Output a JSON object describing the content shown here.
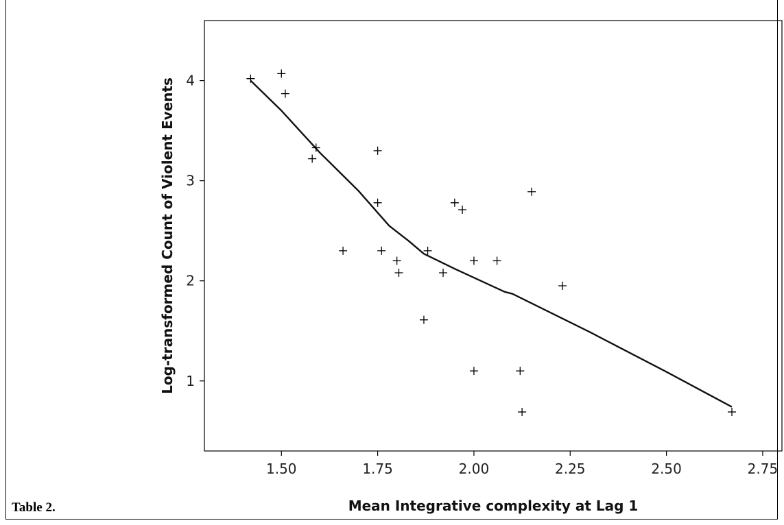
{
  "caption": "Table 2.",
  "chart_data": {
    "type": "scatter",
    "title": "",
    "xlabel": "Mean Integrative complexity at Lag 1",
    "ylabel": "Log-transformed Count of Violent Events",
    "xlim": [
      1.3,
      2.8
    ],
    "ylim": [
      0.3,
      4.6
    ],
    "x_ticks": [
      1.5,
      1.75,
      2.0,
      2.25,
      2.5,
      2.75
    ],
    "x_tick_labels": [
      "1.50",
      "1.75",
      "2.00",
      "2.25",
      "2.50",
      "2.75"
    ],
    "y_ticks": [
      1,
      2,
      3,
      4
    ],
    "y_tick_labels": [
      "1",
      "2",
      "3",
      "4"
    ],
    "grid": false,
    "marker": "plus",
    "points": [
      [
        1.42,
        4.02
      ],
      [
        1.5,
        4.07
      ],
      [
        1.51,
        3.87
      ],
      [
        1.58,
        3.22
      ],
      [
        1.59,
        3.33
      ],
      [
        1.66,
        2.3
      ],
      [
        1.75,
        3.3
      ],
      [
        1.75,
        2.78
      ],
      [
        1.76,
        2.3
      ],
      [
        1.8,
        2.2
      ],
      [
        1.805,
        2.08
      ],
      [
        1.87,
        1.61
      ],
      [
        1.88,
        2.3
      ],
      [
        1.92,
        2.08
      ],
      [
        1.95,
        2.78
      ],
      [
        1.97,
        2.71
      ],
      [
        2.0,
        2.2
      ],
      [
        2.0,
        1.1
      ],
      [
        2.06,
        2.2
      ],
      [
        2.12,
        1.1
      ],
      [
        2.125,
        0.69
      ],
      [
        2.15,
        2.89
      ],
      [
        2.23,
        1.95
      ],
      [
        2.67,
        0.69
      ]
    ],
    "fit_line": [
      [
        1.42,
        4.0
      ],
      [
        1.5,
        3.7
      ],
      [
        1.6,
        3.28
      ],
      [
        1.7,
        2.9
      ],
      [
        1.78,
        2.55
      ],
      [
        1.83,
        2.4
      ],
      [
        1.87,
        2.27
      ],
      [
        1.95,
        2.12
      ],
      [
        2.08,
        1.89
      ],
      [
        2.1,
        1.87
      ],
      [
        2.3,
        1.49
      ],
      [
        2.5,
        1.09
      ],
      [
        2.67,
        0.74
      ]
    ]
  }
}
